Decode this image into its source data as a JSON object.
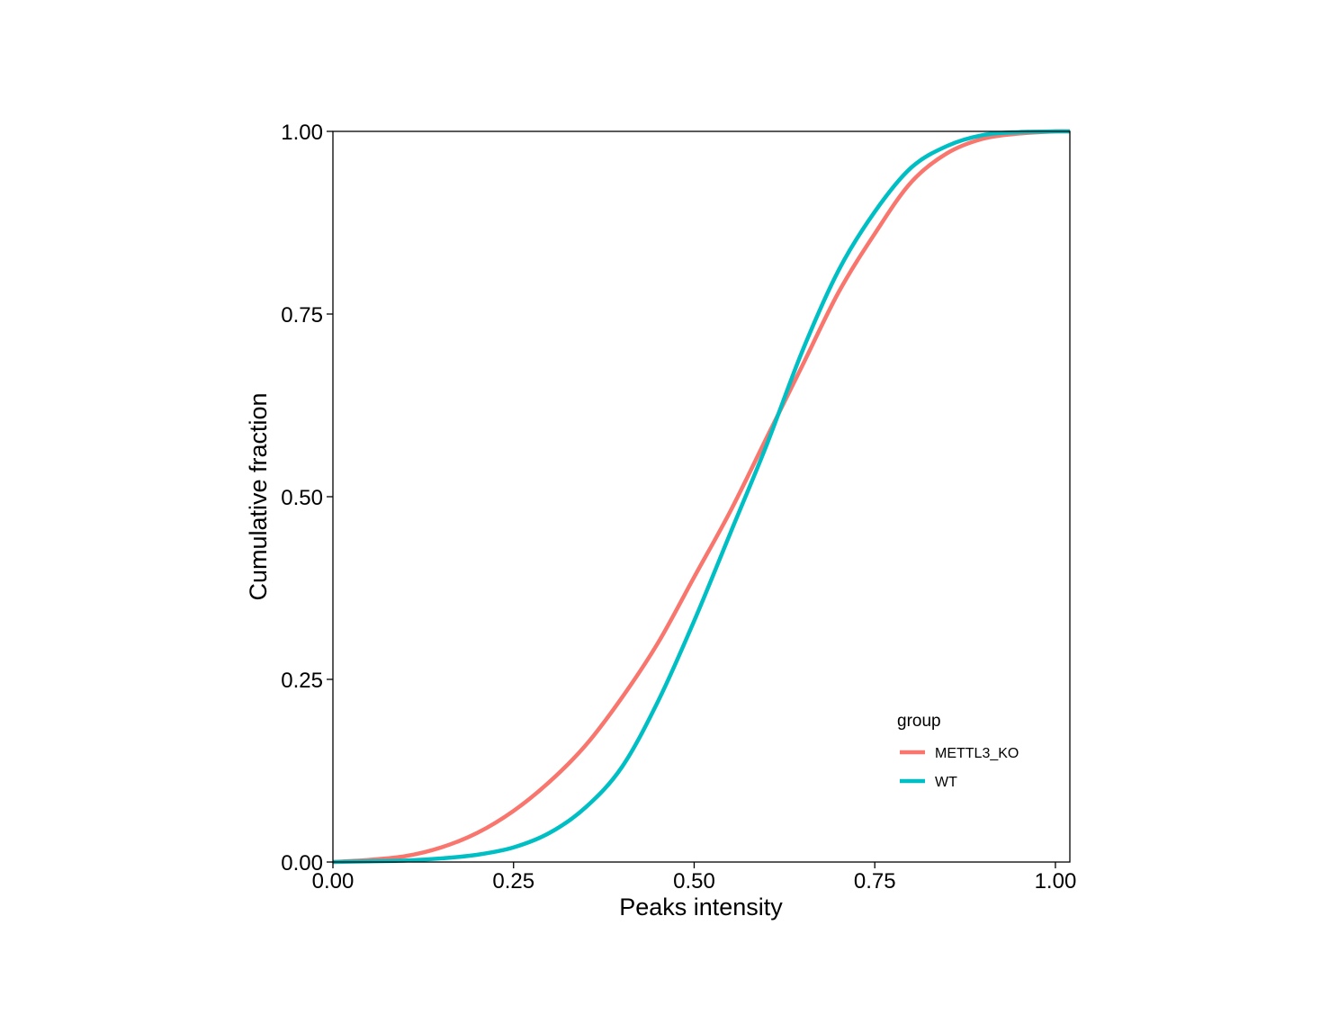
{
  "chart_data": {
    "type": "line",
    "title": "",
    "xlabel": "Peaks intensity",
    "ylabel": "Cumulative fraction",
    "xlim": [
      0,
      1.02
    ],
    "ylim": [
      0,
      1.0
    ],
    "xticks": [
      0,
      0.25,
      0.5,
      0.75,
      1.0
    ],
    "xtick_labels": [
      "0.00",
      "0.25",
      "0.50",
      "0.75",
      "1.00"
    ],
    "yticks": [
      0,
      0.25,
      0.5,
      0.75,
      1.0
    ],
    "ytick_labels": [
      "0.00",
      "0.25",
      "0.50",
      "0.75",
      "1.00"
    ],
    "grid": false,
    "legend": {
      "title": "group",
      "position": "bottom-right"
    },
    "series": [
      {
        "name": "METTL3_KO",
        "color": "#F8766D",
        "x": [
          0.0,
          0.05,
          0.1,
          0.15,
          0.2,
          0.25,
          0.3,
          0.35,
          0.4,
          0.45,
          0.5,
          0.55,
          0.6,
          0.65,
          0.7,
          0.75,
          0.8,
          0.85,
          0.9,
          0.95,
          1.0,
          1.02
        ],
        "y": [
          0.0,
          0.003,
          0.008,
          0.02,
          0.04,
          0.07,
          0.11,
          0.16,
          0.225,
          0.3,
          0.39,
          0.48,
          0.58,
          0.68,
          0.78,
          0.86,
          0.93,
          0.97,
          0.99,
          0.997,
          1.0,
          1.0
        ]
      },
      {
        "name": "WT",
        "color": "#00BFC4",
        "x": [
          0.0,
          0.05,
          0.1,
          0.15,
          0.2,
          0.25,
          0.3,
          0.35,
          0.4,
          0.45,
          0.5,
          0.55,
          0.6,
          0.65,
          0.7,
          0.75,
          0.8,
          0.85,
          0.9,
          0.95,
          1.0,
          1.02
        ],
        "y": [
          0.0,
          0.001,
          0.002,
          0.005,
          0.01,
          0.02,
          0.04,
          0.075,
          0.13,
          0.22,
          0.33,
          0.45,
          0.57,
          0.7,
          0.81,
          0.89,
          0.95,
          0.98,
          0.995,
          0.999,
          1.0,
          1.0
        ]
      }
    ]
  }
}
